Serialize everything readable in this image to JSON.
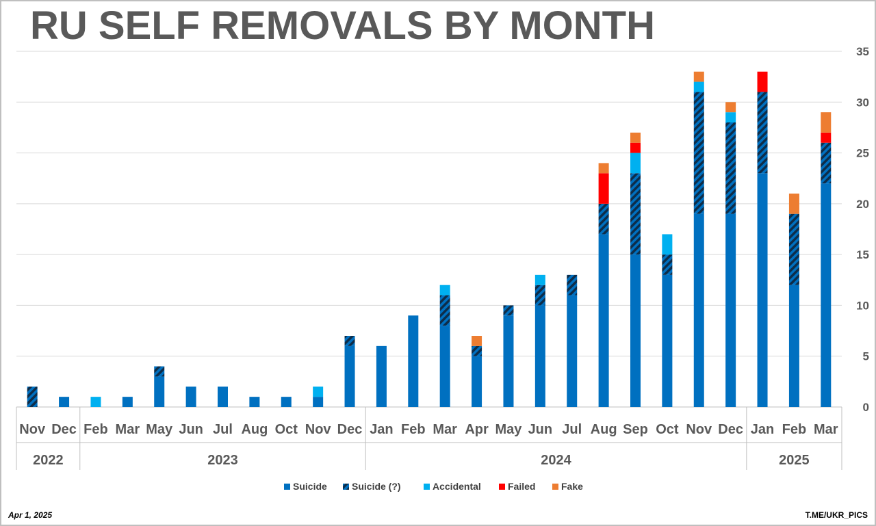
{
  "header": {
    "title": "RU SELF REMOVALS BY MONTH"
  },
  "footer": {
    "date": "Apr  1, 2025",
    "source": "T.ME/UKR_PICS"
  },
  "chart_data": {
    "type": "bar",
    "stacked": true,
    "title": "RU SELF REMOVALS BY MONTH",
    "xlabel": "",
    "ylabel": "",
    "ylim": [
      0,
      35
    ],
    "yticks": [
      0,
      5,
      10,
      15,
      20,
      25,
      30,
      35
    ],
    "ytick_labels": [
      "0",
      "5",
      "10",
      "15",
      "20",
      "25",
      "30",
      "35"
    ],
    "grid": true,
    "legend_position": "bottom",
    "categories": [
      "Nov",
      "Dec",
      "Feb",
      "Mar",
      "May",
      "Jun",
      "Jul",
      "Aug",
      "Oct",
      "Nov",
      "Dec",
      "Jan",
      "Feb",
      "Mar",
      "Apr",
      "May",
      "Jun",
      "Jul",
      "Aug",
      "Sep",
      "Oct",
      "Nov",
      "Dec",
      "Jan",
      "Feb",
      "Mar"
    ],
    "years": [
      {
        "label": "2022",
        "count": 2
      },
      {
        "label": "2023",
        "count": 9
      },
      {
        "label": "2024",
        "count": 12
      },
      {
        "label": "2025",
        "count": 3
      }
    ],
    "series": [
      {
        "name": "Suicide",
        "color": "#0070c0",
        "pattern": "solid",
        "values": [
          0,
          1,
          0,
          1,
          3,
          2,
          2,
          1,
          1,
          1,
          6,
          6,
          9,
          8,
          5,
          9,
          10,
          11,
          17,
          15,
          13,
          19,
          19,
          23,
          12,
          22
        ]
      },
      {
        "name": "Suicide (?)",
        "color": "#0070c0",
        "pattern": "hatched",
        "values": [
          2,
          0,
          0,
          0,
          1,
          0,
          0,
          0,
          0,
          0,
          1,
          0,
          0,
          3,
          1,
          1,
          2,
          2,
          3,
          8,
          2,
          12,
          9,
          8,
          7,
          4
        ]
      },
      {
        "name": "Accidental",
        "color": "#00b0f0",
        "pattern": "solid",
        "values": [
          0,
          0,
          1,
          0,
          0,
          0,
          0,
          0,
          0,
          1,
          0,
          0,
          0,
          1,
          0,
          0,
          1,
          0,
          0,
          2,
          2,
          1,
          1,
          0,
          0,
          0
        ]
      },
      {
        "name": "Failed",
        "color": "#ff0000",
        "pattern": "solid",
        "values": [
          0,
          0,
          0,
          0,
          0,
          0,
          0,
          0,
          0,
          0,
          0,
          0,
          0,
          0,
          0,
          0,
          0,
          0,
          3,
          1,
          0,
          0,
          0,
          2,
          0,
          1
        ]
      },
      {
        "name": "Fake",
        "color": "#ed7d31",
        "pattern": "solid",
        "values": [
          0,
          0,
          0,
          0,
          0,
          0,
          0,
          0,
          0,
          0,
          0,
          0,
          0,
          0,
          1,
          0,
          0,
          0,
          1,
          1,
          0,
          1,
          1,
          0,
          2,
          2
        ]
      }
    ]
  },
  "colors": {
    "title": "#595959",
    "grid": "#d9d9d9",
    "axis": "#bfbfbf",
    "hatch_dark": "#0d2d4a"
  }
}
